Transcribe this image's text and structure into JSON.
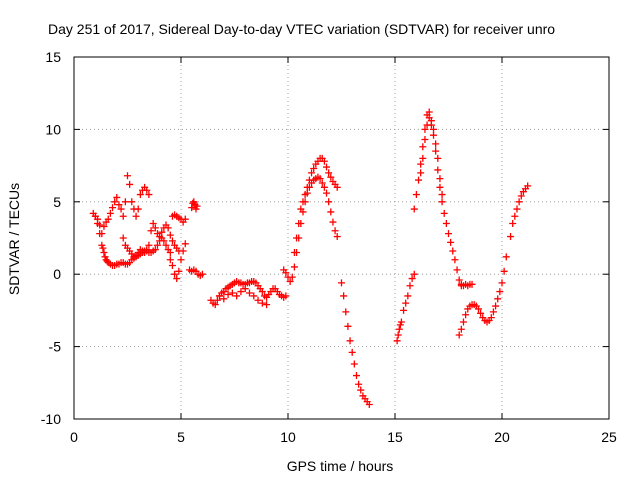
{
  "chart_data": {
    "type": "scatter",
    "title": "Day 251 of 2017, Sidereal Day-to-day VTEC variation (SDTVAR) for receiver unro",
    "xlabel": "GPS time / hours",
    "ylabel": "SDTVAR / TECUs",
    "xlim": [
      0,
      25
    ],
    "ylim": [
      -10,
      15
    ],
    "x_ticks": [
      0,
      5,
      10,
      15,
      20,
      25
    ],
    "y_ticks": [
      -10,
      -5,
      0,
      5,
      10,
      15
    ],
    "grid": true,
    "legend": "none",
    "marker": "plus",
    "color": "#ff0000",
    "series": [
      {
        "x": [
          0.9,
          1.0,
          1.1,
          1.2,
          1.3,
          1.35,
          1.4,
          1.45,
          1.5,
          1.55,
          1.6,
          1.7,
          1.8,
          1.9,
          2.0,
          2.1,
          2.2,
          2.3,
          2.4,
          2.5,
          2.6,
          2.7,
          2.8,
          2.9,
          3.0,
          3.1,
          3.2,
          3.3,
          3.4,
          3.5,
          3.6,
          3.7,
          3.8,
          3.9,
          4.0,
          4.1,
          4.2,
          4.3,
          4.4,
          4.5
        ],
        "y": [
          4.2,
          4.0,
          3.5,
          2.8,
          2.0,
          1.8,
          1.5,
          1.2,
          1.0,
          0.9,
          0.8,
          0.7,
          0.6,
          0.6,
          0.7,
          0.7,
          0.8,
          0.8,
          0.7,
          0.7,
          0.8,
          1.0,
          1.1,
          1.2,
          1.3,
          1.4,
          1.5,
          1.6,
          1.6,
          1.5,
          1.5,
          1.6,
          1.7,
          2.0,
          2.3,
          2.5,
          2.3,
          2.0,
          1.7,
          1.5
        ]
      },
      {
        "x": [
          1.0,
          1.1,
          1.2,
          1.3,
          1.4,
          1.5,
          1.6,
          1.7,
          1.8,
          1.9,
          2.0,
          2.1,
          2.2,
          2.3,
          2.4,
          2.5,
          2.6,
          2.7,
          2.8,
          2.9,
          3.0,
          3.1,
          3.2,
          3.3,
          3.4,
          3.5
        ],
        "y": [
          4.0,
          3.8,
          3.4,
          2.8,
          3.3,
          3.6,
          3.8,
          4.2,
          4.6,
          5.0,
          5.3,
          4.8,
          4.5,
          4.0,
          5.0,
          6.8,
          6.2,
          5.0,
          4.5,
          4.0,
          4.5,
          5.5,
          5.8,
          6.0,
          5.8,
          5.5
        ]
      },
      {
        "x": [
          2.3,
          2.4,
          2.5,
          2.6,
          2.7,
          2.8,
          2.9,
          3.0,
          3.1,
          3.2,
          3.3,
          3.4,
          3.5,
          3.6,
          3.7,
          3.8,
          3.9,
          4.0,
          4.1,
          4.2,
          4.3,
          4.4,
          4.5,
          4.6,
          4.7,
          4.8,
          4.9
        ],
        "y": [
          2.5,
          2.0,
          1.8,
          1.6,
          1.4,
          1.2,
          1.3,
          1.5,
          1.7,
          1.6,
          1.5,
          1.7,
          2.0,
          3.0,
          3.5,
          3.2,
          2.8,
          2.6,
          2.9,
          3.2,
          3.4,
          3.2,
          2.7,
          2.3,
          2.0,
          1.8,
          1.6
        ]
      },
      {
        "x": [
          4.5,
          4.6,
          4.7,
          4.8,
          4.9,
          5.0,
          5.1,
          5.2
        ],
        "y": [
          1.0,
          0.6,
          0.0,
          -0.3,
          0.2,
          1.0,
          1.6,
          2.1
        ]
      },
      {
        "x": [
          4.6,
          4.7,
          4.8,
          4.9,
          5.0,
          5.1,
          5.2
        ],
        "y": [
          4.0,
          4.1,
          4.0,
          3.9,
          3.8,
          3.6,
          3.8
        ]
      },
      {
        "x": [
          5.5,
          5.55,
          5.6,
          5.65,
          5.7,
          5.75
        ],
        "y": [
          4.6,
          4.9,
          5.0,
          4.8,
          4.5,
          4.7
        ]
      },
      {
        "x": [
          5.4,
          5.5,
          5.6,
          5.7,
          5.8,
          5.9,
          6.0
        ],
        "y": [
          0.3,
          0.2,
          0.3,
          0.2,
          0.0,
          -0.1,
          0.0
        ]
      },
      {
        "x": [
          6.4,
          6.5,
          6.6,
          6.7,
          6.8,
          6.9,
          7.0,
          7.1,
          7.2,
          7.3,
          7.4,
          7.5,
          7.6,
          7.7,
          7.8,
          7.9,
          8.0,
          8.1,
          8.2,
          8.3,
          8.4,
          8.5,
          8.6,
          8.7,
          8.8,
          8.9,
          9.0,
          9.1,
          9.2,
          9.3,
          9.4,
          9.5,
          9.6,
          9.7,
          9.8,
          9.9
        ],
        "y": [
          -1.8,
          -2.0,
          -2.1,
          -1.8,
          -1.5,
          -1.3,
          -1.2,
          -1.0,
          -0.9,
          -0.8,
          -0.7,
          -0.6,
          -0.5,
          -0.6,
          -0.6,
          -0.7,
          -0.7,
          -0.6,
          -0.6,
          -0.5,
          -0.5,
          -0.6,
          -0.8,
          -1.0,
          -1.2,
          -1.5,
          -1.6,
          -1.4,
          -1.2,
          -1.0,
          -1.0,
          -1.2,
          -1.4,
          -1.5,
          -1.6,
          -1.5
        ]
      },
      {
        "x": [
          6.8,
          7.0,
          7.2,
          7.4,
          7.6,
          7.8,
          8.0,
          8.2,
          8.4,
          8.6,
          8.8,
          9.0
        ],
        "y": [
          -1.5,
          -1.7,
          -1.4,
          -1.3,
          -1.5,
          -1.2,
          -1.0,
          -1.3,
          -1.5,
          -1.8,
          -2.0,
          -2.1
        ]
      },
      {
        "x": [
          9.8,
          9.9,
          10.0,
          10.1,
          10.2,
          10.3,
          10.4,
          10.5,
          10.6,
          10.7,
          10.8,
          10.9,
          11.0,
          11.1,
          11.2,
          11.3,
          11.4,
          11.5,
          11.6,
          11.7,
          11.8,
          11.9,
          12.0,
          12.1,
          12.2,
          12.3
        ],
        "y": [
          0.3,
          0.1,
          -0.2,
          -0.5,
          -0.2,
          0.5,
          1.5,
          2.5,
          3.5,
          4.3,
          5.0,
          5.6,
          6.0,
          6.3,
          6.5,
          6.6,
          6.7,
          6.6,
          6.3,
          6.0,
          5.6,
          5.0,
          4.3,
          3.6,
          3.0,
          2.6
        ]
      },
      {
        "x": [
          10.3,
          10.4,
          10.5,
          10.6,
          10.7,
          10.8,
          10.9,
          11.0,
          11.1,
          11.2,
          11.3,
          11.4,
          11.5,
          11.6,
          11.7,
          11.8,
          11.9,
          12.0,
          12.1,
          12.2,
          12.3
        ],
        "y": [
          1.5,
          2.5,
          3.5,
          4.5,
          5.0,
          5.5,
          6.0,
          6.5,
          7.0,
          7.3,
          7.6,
          7.8,
          8.0,
          8.0,
          7.8,
          7.4,
          7.0,
          6.7,
          6.4,
          6.2,
          6.0
        ]
      },
      {
        "x": [
          12.5,
          12.6,
          12.7,
          12.8,
          12.9,
          13.0,
          13.1,
          13.2,
          13.3,
          13.4,
          13.5,
          13.6,
          13.7,
          13.8
        ],
        "y": [
          -0.6,
          -1.5,
          -2.6,
          -3.6,
          -4.6,
          -5.4,
          -6.2,
          -7.0,
          -7.6,
          -8.0,
          -8.4,
          -8.6,
          -8.8,
          -9.0
        ]
      },
      {
        "x": [
          15.1,
          15.15,
          15.2,
          15.25,
          15.3,
          15.4,
          15.5,
          15.6,
          15.7,
          15.8,
          15.9
        ],
        "y": [
          -4.6,
          -4.2,
          -3.8,
          -3.5,
          -3.3,
          -2.5,
          -2.0,
          -1.5,
          -0.8,
          -0.3,
          0.0
        ]
      },
      {
        "x": [
          15.9,
          16.0,
          16.1,
          16.2,
          16.3,
          16.4,
          16.5,
          16.6,
          16.7,
          16.8,
          16.9,
          17.0,
          17.1,
          17.2,
          17.3,
          17.4,
          17.5,
          17.6,
          17.7,
          17.8,
          17.9,
          18.0,
          18.1
        ],
        "y": [
          4.5,
          5.5,
          6.5,
          7.6,
          8.8,
          10.0,
          11.0,
          10.8,
          10.3,
          9.6,
          8.5,
          7.2,
          6.0,
          5.0,
          4.2,
          3.5,
          2.8,
          2.2,
          1.6,
          1.0,
          0.3,
          -0.4,
          -0.8
        ]
      },
      {
        "x": [
          16.2,
          16.3,
          16.4,
          16.5,
          16.6,
          16.7,
          16.8,
          16.9,
          17.0,
          17.1,
          17.2
        ],
        "y": [
          7.0,
          8.0,
          9.3,
          10.3,
          11.2,
          10.6,
          10.0,
          9.0,
          8.0,
          6.6,
          5.5
        ]
      },
      {
        "x": [
          18.1,
          18.2,
          18.3,
          18.4,
          18.5,
          18.6
        ],
        "y": [
          -0.7,
          -0.8,
          -0.7,
          -0.8,
          -0.7,
          -0.7
        ]
      },
      {
        "x": [
          18.0,
          18.1,
          18.2,
          18.3,
          18.4,
          18.5,
          18.6,
          18.7,
          18.8,
          18.9,
          19.0,
          19.1,
          19.2,
          19.3,
          19.4,
          19.5,
          19.6,
          19.7,
          19.8,
          19.9,
          20.0,
          20.1,
          20.2
        ],
        "y": [
          -4.2,
          -3.8,
          -3.3,
          -2.8,
          -2.4,
          -2.2,
          -2.1,
          -2.1,
          -2.2,
          -2.4,
          -2.7,
          -3.0,
          -3.2,
          -3.3,
          -3.2,
          -3.0,
          -2.6,
          -2.2,
          -1.7,
          -1.2,
          -0.6,
          0.2,
          1.2
        ]
      },
      {
        "x": [
          20.4,
          20.5,
          20.6,
          20.7,
          20.8,
          20.9,
          21.0,
          21.1,
          21.2
        ],
        "y": [
          2.6,
          3.5,
          4.0,
          4.5,
          5.0,
          5.4,
          5.7,
          5.9,
          6.1
        ]
      }
    ]
  }
}
